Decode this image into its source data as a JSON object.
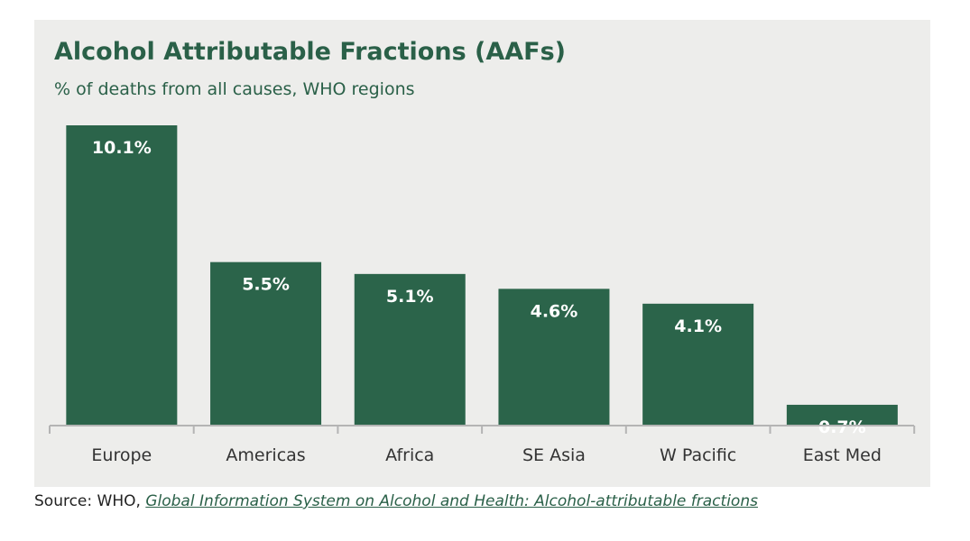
{
  "title": "Alcohol Attributable Fractions (AAFs)",
  "subtitle": "% of deaths from all causes, WHO regions",
  "source": {
    "prefix": "Source: WHO, ",
    "link_text": "Global Information System on Alcohol and Health: Alcohol-attributable fractions"
  },
  "colors": {
    "bar": "#2b644a",
    "text_accent": "#2a6048",
    "panel_bg": "#ededeb",
    "axis": "#b4b4b4"
  },
  "chart_data": {
    "type": "bar",
    "categories": [
      "Europe",
      "Americas",
      "Africa",
      "SE Asia",
      "W Pacific",
      "East Med"
    ],
    "values": [
      10.1,
      5.5,
      5.1,
      4.6,
      4.1,
      0.7
    ],
    "data_labels": [
      "10.1%",
      "5.5%",
      "5.1%",
      "4.6%",
      "4.1%",
      "0.7%"
    ],
    "title": "Alcohol Attributable Fractions (AAFs)",
    "subtitle": "% of deaths from all causes, WHO regions",
    "xlabel": "",
    "ylabel": "",
    "ylim": [
      0,
      10.1
    ],
    "grid": false,
    "legend": "none"
  }
}
